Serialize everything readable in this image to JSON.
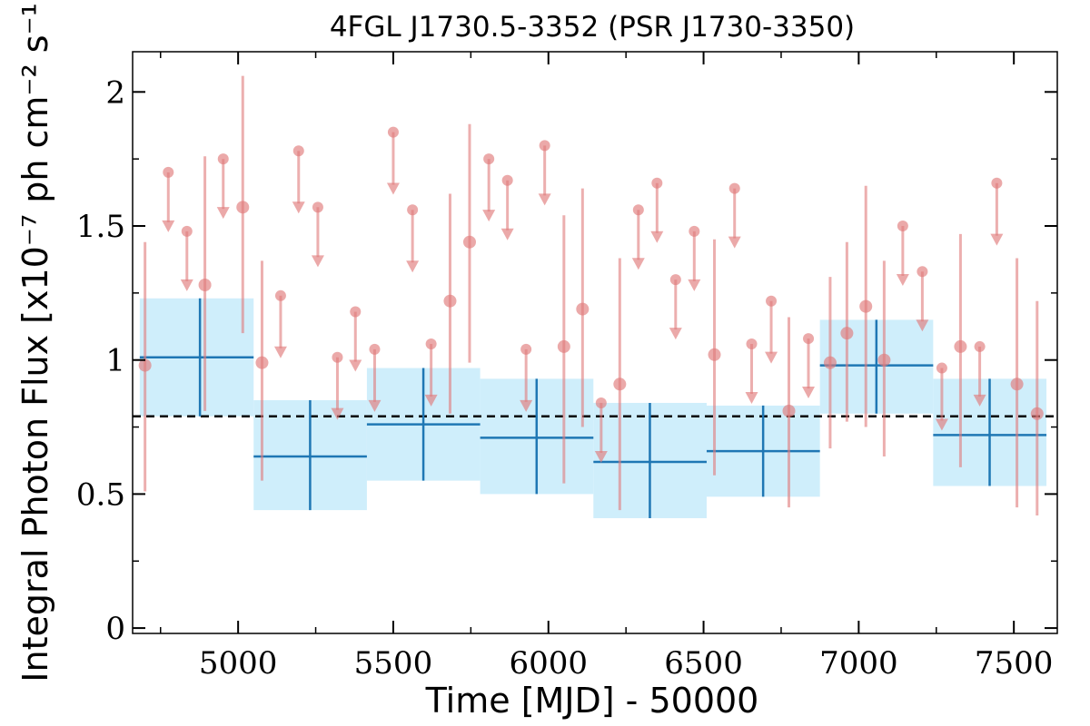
{
  "chart_data": {
    "type": "scatter",
    "title": "4FGL J1730.5-3352 (PSR J1730-3350)",
    "xlabel": "Time [MJD] - 50000",
    "ylabel": "Integral Photon Flux [x10⁻⁷ ph cm⁻² s⁻¹]",
    "xlim": [
      4660,
      7640
    ],
    "ylim": [
      -0.02,
      2.15
    ],
    "x_ticks": [
      5000,
      5500,
      6000,
      6500,
      7000,
      7500
    ],
    "x_tick_labels": [
      "5000",
      "5500",
      "6000",
      "6500",
      "7000",
      "7500"
    ],
    "y_ticks": [
      0,
      0.5,
      1,
      1.5,
      2
    ],
    "y_tick_labels": [
      "0",
      "0.5",
      "1",
      "1.5",
      "2"
    ],
    "mean_flux": 0.79,
    "colors": {
      "monthly": "#e07b7b",
      "yearly_line": "#1f77b4",
      "yearly_band": "#cfeefb",
      "mean_line": "#000000"
    },
    "series": [
      {
        "kind": "monthly_detections",
        "points": [
          {
            "x": 4700,
            "y": 0.98,
            "ylo": 0.51,
            "yhi": 1.44
          },
          {
            "x": 4893,
            "y": 1.28,
            "ylo": 0.81,
            "yhi": 1.76
          },
          {
            "x": 5015,
            "y": 1.57,
            "ylo": 1.1,
            "yhi": 2.06
          },
          {
            "x": 5077,
            "y": 0.99,
            "ylo": 0.55,
            "yhi": 1.37
          },
          {
            "x": 5683,
            "y": 1.22,
            "ylo": 0.8,
            "yhi": 1.62
          },
          {
            "x": 5746,
            "y": 1.44,
            "ylo": 0.99,
            "yhi": 1.88
          },
          {
            "x": 6050,
            "y": 1.05,
            "ylo": 0.54,
            "yhi": 1.54
          },
          {
            "x": 6110,
            "y": 1.19,
            "ylo": 0.75,
            "yhi": 1.64
          },
          {
            "x": 6230,
            "y": 0.91,
            "ylo": 0.44,
            "yhi": 1.38
          },
          {
            "x": 6535,
            "y": 1.02,
            "ylo": 0.57,
            "yhi": 1.45
          },
          {
            "x": 6775,
            "y": 0.81,
            "ylo": 0.45,
            "yhi": 1.16
          },
          {
            "x": 6908,
            "y": 0.99,
            "ylo": 0.67,
            "yhi": 1.31
          },
          {
            "x": 6962,
            "y": 1.1,
            "ylo": 0.77,
            "yhi": 1.44
          },
          {
            "x": 7023,
            "y": 1.2,
            "ylo": 0.75,
            "yhi": 1.65
          },
          {
            "x": 7082,
            "y": 1.0,
            "ylo": 0.64,
            "yhi": 1.37
          },
          {
            "x": 7328,
            "y": 1.05,
            "ylo": 0.6,
            "yhi": 1.47
          },
          {
            "x": 7510,
            "y": 0.91,
            "ylo": 0.45,
            "yhi": 1.38
          },
          {
            "x": 7575,
            "y": 0.8,
            "ylo": 0.42,
            "yhi": 1.22
          }
        ]
      },
      {
        "kind": "monthly_upper_limits",
        "points": [
          {
            "x": 4775,
            "y": 1.7,
            "tip": 1.48
          },
          {
            "x": 4835,
            "y": 1.48,
            "tip": 1.26
          },
          {
            "x": 4952,
            "y": 1.75,
            "tip": 1.53
          },
          {
            "x": 5137,
            "y": 1.24,
            "tip": 1.01
          },
          {
            "x": 5195,
            "y": 1.78,
            "tip": 1.55
          },
          {
            "x": 5257,
            "y": 1.57,
            "tip": 1.35
          },
          {
            "x": 5320,
            "y": 1.01,
            "tip": 0.78
          },
          {
            "x": 5378,
            "y": 1.18,
            "tip": 0.96
          },
          {
            "x": 5440,
            "y": 1.04,
            "tip": 0.81
          },
          {
            "x": 5500,
            "y": 1.85,
            "tip": 1.62
          },
          {
            "x": 5562,
            "y": 1.56,
            "tip": 1.33
          },
          {
            "x": 5622,
            "y": 1.06,
            "tip": 0.83
          },
          {
            "x": 5808,
            "y": 1.75,
            "tip": 1.52
          },
          {
            "x": 5868,
            "y": 1.67,
            "tip": 1.45
          },
          {
            "x": 5928,
            "y": 1.04,
            "tip": 0.81
          },
          {
            "x": 5988,
            "y": 1.8,
            "tip": 1.58
          },
          {
            "x": 6170,
            "y": 0.84,
            "tip": 0.62
          },
          {
            "x": 6290,
            "y": 1.56,
            "tip": 1.34
          },
          {
            "x": 6350,
            "y": 1.66,
            "tip": 1.44
          },
          {
            "x": 6410,
            "y": 1.3,
            "tip": 1.08
          },
          {
            "x": 6470,
            "y": 1.48,
            "tip": 1.26
          },
          {
            "x": 6600,
            "y": 1.64,
            "tip": 1.42
          },
          {
            "x": 6655,
            "y": 1.06,
            "tip": 0.84
          },
          {
            "x": 6718,
            "y": 1.22,
            "tip": 0.99
          },
          {
            "x": 6838,
            "y": 1.08,
            "tip": 0.86
          },
          {
            "x": 7142,
            "y": 1.5,
            "tip": 1.28
          },
          {
            "x": 7205,
            "y": 1.33,
            "tip": 1.11
          },
          {
            "x": 7268,
            "y": 0.97,
            "tip": 0.74
          },
          {
            "x": 7390,
            "y": 1.05,
            "tip": 0.83
          },
          {
            "x": 7445,
            "y": 1.66,
            "tip": 1.43
          }
        ]
      },
      {
        "kind": "yearly_bins",
        "bins": [
          {
            "x0": 4683,
            "x1": 5050,
            "x": 4877,
            "y": 1.01,
            "ylo": 0.79,
            "yhi": 1.23
          },
          {
            "x0": 5050,
            "x1": 5415,
            "x": 5232,
            "y": 0.64,
            "ylo": 0.44,
            "yhi": 0.85
          },
          {
            "x0": 5415,
            "x1": 5780,
            "x": 5597,
            "y": 0.76,
            "ylo": 0.55,
            "yhi": 0.97
          },
          {
            "x0": 5780,
            "x1": 6145,
            "x": 5962,
            "y": 0.71,
            "ylo": 0.5,
            "yhi": 0.93
          },
          {
            "x0": 6145,
            "x1": 6510,
            "x": 6327,
            "y": 0.62,
            "ylo": 0.41,
            "yhi": 0.84
          },
          {
            "x0": 6510,
            "x1": 6875,
            "x": 6692,
            "y": 0.66,
            "ylo": 0.49,
            "yhi": 0.83
          },
          {
            "x0": 6875,
            "x1": 7240,
            "x": 7057,
            "y": 0.98,
            "ylo": 0.8,
            "yhi": 1.15
          },
          {
            "x0": 7240,
            "x1": 7605,
            "x": 7422,
            "y": 0.72,
            "ylo": 0.53,
            "yhi": 0.93
          }
        ]
      }
    ]
  }
}
